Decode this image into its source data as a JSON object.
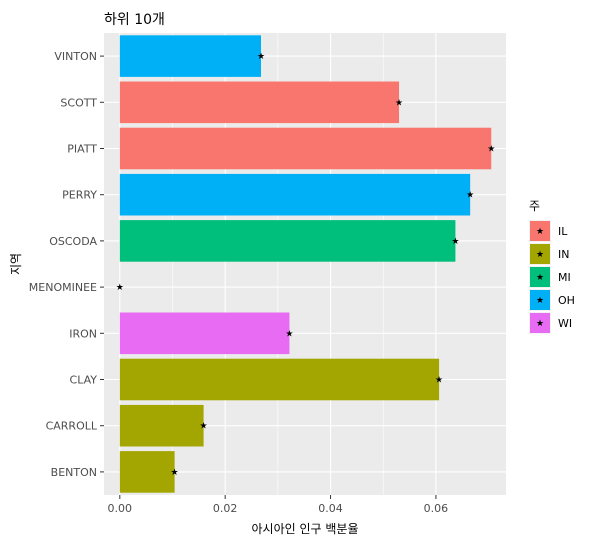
{
  "chart_data": {
    "type": "bar",
    "orientation": "horizontal",
    "title": "하위 10개",
    "xlabel": "아시아인 인구 백분율",
    "ylabel": "지역",
    "xlim": [
      -0.003,
      0.0733
    ],
    "xticks": [
      0,
      0.02,
      0.04,
      0.06
    ],
    "xtick_labels": [
      "0.00",
      "0.02",
      "0.04",
      "0.06"
    ],
    "grid": true,
    "legend_position": "right",
    "legend_title": "주",
    "legend": [
      {
        "key": "IL",
        "color": "#F8766D"
      },
      {
        "key": "IN",
        "color": "#A3A500"
      },
      {
        "key": "MI",
        "color": "#00BF7D"
      },
      {
        "key": "OH",
        "color": "#00B0F6"
      },
      {
        "key": "WI",
        "color": "#E76BF3"
      }
    ],
    "bars": [
      {
        "category": "VINTON",
        "value": 0.0268,
        "state": "OH"
      },
      {
        "category": "SCOTT",
        "value": 0.053,
        "state": "IL"
      },
      {
        "category": "PIATT",
        "value": 0.0705,
        "state": "IL"
      },
      {
        "category": "PERRY",
        "value": 0.0665,
        "state": "OH"
      },
      {
        "category": "OSCODA",
        "value": 0.0637,
        "state": "MI"
      },
      {
        "category": "MENOMINEE",
        "value": 0.0,
        "state": "WI"
      },
      {
        "category": "IRON",
        "value": 0.0322,
        "state": "WI"
      },
      {
        "category": "CLAY",
        "value": 0.0606,
        "state": "IN"
      },
      {
        "category": "CARROLL",
        "value": 0.0159,
        "state": "IN"
      },
      {
        "category": "BENTON",
        "value": 0.0104,
        "state": "IN"
      }
    ]
  }
}
